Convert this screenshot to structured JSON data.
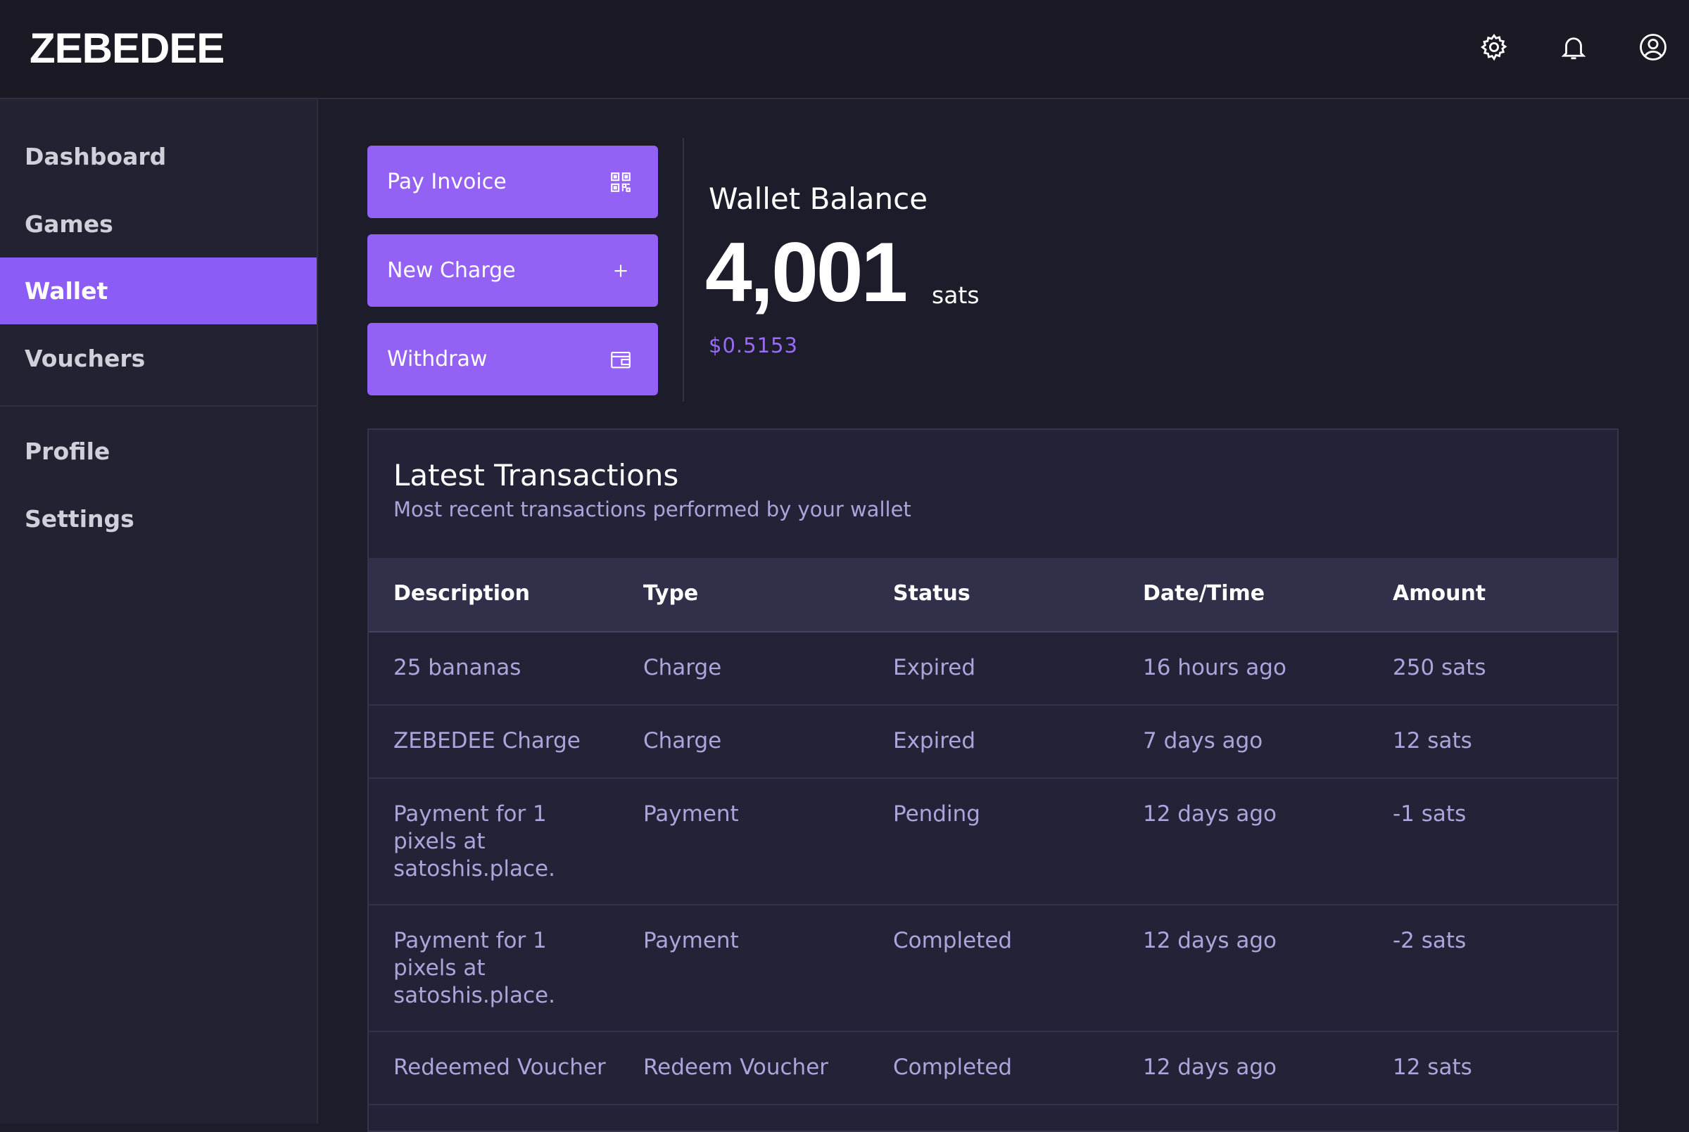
{
  "header": {
    "logo": "ZEBEDEE"
  },
  "sidebar": {
    "items": [
      "Dashboard",
      "Games",
      "Wallet",
      "Vouchers"
    ],
    "secondary": [
      "Profile",
      "Settings"
    ],
    "active_index": 2
  },
  "actions": [
    "Pay Invoice",
    "New Charge",
    "Withdraw"
  ],
  "balance": {
    "title": "Wallet Balance",
    "amount": "4,001",
    "unit": "sats",
    "fiat": "$0.5153"
  },
  "transactions": {
    "title": "Latest Transactions",
    "subtitle": "Most recent transactions performed by your wallet",
    "columns": [
      "Description",
      "Type",
      "Status",
      "Date/Time",
      "Amount"
    ],
    "rows": [
      [
        [
          "25 bananas"
        ],
        "Charge",
        "Expired",
        "16 hours ago",
        "250 sats"
      ],
      [
        [
          "ZEBEDEE Charge"
        ],
        "Charge",
        "Expired",
        "7 days ago",
        "12 sats"
      ],
      [
        [
          "Payment for 1",
          "pixels at",
          "satoshis.place."
        ],
        "Payment",
        "Pending",
        "12 days ago",
        "-1 sats"
      ],
      [
        [
          "Payment for 1",
          "pixels at",
          "satoshis.place."
        ],
        "Payment",
        "Completed",
        "12 days ago",
        "-2 sats"
      ],
      [
        [
          "Redeemed Voucher"
        ],
        "Redeem Voucher",
        "Completed",
        "12 days ago",
        "12 sats"
      ]
    ]
  }
}
